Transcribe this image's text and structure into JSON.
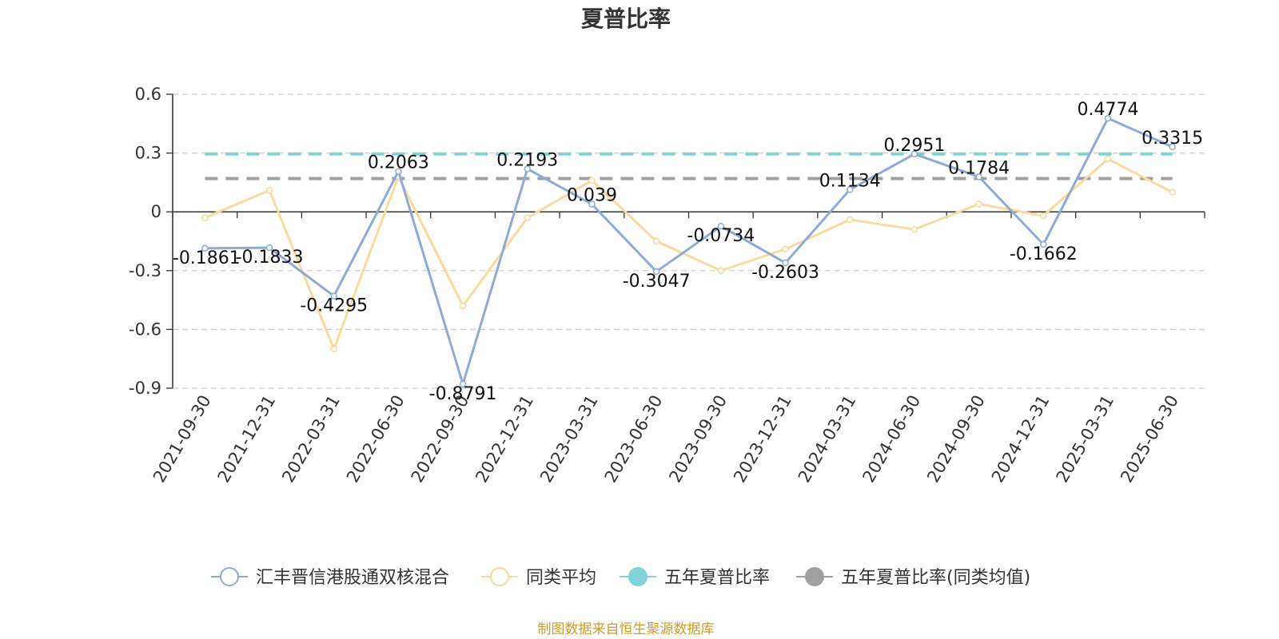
{
  "chart_data": {
    "type": "line",
    "title": "夏普比率",
    "categories": [
      "2021-09-30",
      "2021-12-31",
      "2022-03-31",
      "2022-06-30",
      "2022-09-30",
      "2022-12-31",
      "2023-03-31",
      "2023-06-30",
      "2023-09-30",
      "2023-12-31",
      "2024-03-31",
      "2024-06-30",
      "2024-09-30",
      "2024-12-31",
      "2025-03-31",
      "2025-06-30"
    ],
    "y_ticks": [
      "0.6",
      "0.3",
      "0",
      "-0.3",
      "-0.6",
      "-0.9"
    ],
    "ylim": [
      -0.9,
      0.6
    ],
    "grid": true,
    "legend_position": "bottom",
    "series": [
      {
        "name": "汇丰晋信港股通双核混合",
        "color": "#8eaad8",
        "values": [
          -0.1861,
          -0.1833,
          -0.4295,
          0.2063,
          -0.8791,
          0.2193,
          0.039,
          -0.3047,
          -0.0734,
          -0.2603,
          0.1134,
          0.2951,
          0.1784,
          -0.1662,
          0.4774,
          0.3315
        ],
        "labels": [
          "-0.1861",
          "-0.1833",
          "-0.4295",
          "0.2063",
          "-0.8791",
          "0.2193",
          "0.039",
          "-0.3047",
          "-0.0734",
          "-0.2603",
          "0.1134",
          "0.2951",
          "0.1784",
          "-0.1662",
          "0.4774",
          "0.3315"
        ]
      },
      {
        "name": "同类平均",
        "color": "#fbd99a",
        "values": [
          -0.03,
          0.11,
          -0.7,
          0.18,
          -0.48,
          -0.03,
          0.16,
          -0.15,
          -0.3,
          -0.19,
          -0.04,
          -0.09,
          0.04,
          -0.02,
          0.27,
          0.1
        ]
      }
    ],
    "reference_lines": [
      {
        "name": "五年夏普比率",
        "color": "#7fd3d6",
        "value": 0.2951
      },
      {
        "name": "五年夏普比率(同类均值)",
        "color": "#a0a0a0",
        "value": 0.17
      }
    ],
    "source": "制图数据来自恒生聚源数据库"
  }
}
